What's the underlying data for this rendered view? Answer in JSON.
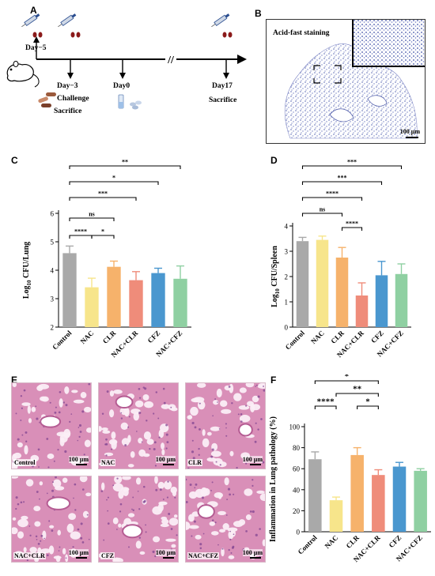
{
  "panels": {
    "A": "A",
    "B": "B",
    "C": "C",
    "D": "D",
    "E": "E",
    "F": "F"
  },
  "timeline": {
    "events": [
      {
        "label": "Day−5"
      },
      {
        "label": "Day−3",
        "sub1": "Challenge",
        "sub2": "Sacrifice"
      },
      {
        "label": "Day0"
      },
      {
        "label": "Day17",
        "sub1": "Sacrifice"
      }
    ],
    "break_mark": "//"
  },
  "panel_b": {
    "title": "Acid-fast staining",
    "scale": "100 μm"
  },
  "panel_e": {
    "tiles": [
      {
        "label": "Control",
        "scale": "100 μm"
      },
      {
        "label": "NAC",
        "scale": "100 μm"
      },
      {
        "label": "CLR",
        "scale": "100 μm"
      },
      {
        "label": "NAC+CLR",
        "scale": "100 μm"
      },
      {
        "label": "CFZ",
        "scale": "100 μm"
      },
      {
        "label": "NAC+CFZ",
        "scale": "100 μm"
      }
    ]
  },
  "colors": {
    "Control": "#a9a9a9",
    "NAC": "#f7e58b",
    "CLR": "#f6b26b",
    "NAC+CLR": "#ef8c7a",
    "CFZ": "#4a97cf",
    "NAC+CFZ": "#8fd0a2",
    "tissue": "#d98fb8",
    "tissue_dark": "#b55c93",
    "stain_blue": "#3e4fa6"
  },
  "chart_data": [
    {
      "id": "C",
      "type": "bar",
      "categories": [
        "Control",
        "NAC",
        "CLR",
        "NAC+CLR",
        "CFZ",
        "NAC+CFZ"
      ],
      "values": [
        4.6,
        3.4,
        4.12,
        3.65,
        3.9,
        3.7
      ],
      "errors": [
        0.25,
        0.32,
        0.2,
        0.3,
        0.17,
        0.45
      ],
      "ylabel_base": "Log",
      "ylabel_sub": "10",
      "ylabel_rest": " CFU/Lung",
      "ylim": [
        2,
        6
      ],
      "yticks": [
        2,
        3,
        4,
        5,
        6
      ],
      "significance": [
        {
          "from": 0,
          "to": 1,
          "label": "****"
        },
        {
          "from": 1,
          "to": 2,
          "label": "*"
        },
        {
          "from": 0,
          "to": 2,
          "label": "ns"
        },
        {
          "from": 0,
          "to": 3,
          "label": "***"
        },
        {
          "from": 0,
          "to": 4,
          "label": "*"
        },
        {
          "from": 0,
          "to": 5,
          "label": "**"
        }
      ]
    },
    {
      "id": "D",
      "type": "bar",
      "categories": [
        "Control",
        "NAC",
        "CLR",
        "NAC+CLR",
        "CFZ",
        "NAC+CFZ"
      ],
      "values": [
        3.4,
        3.45,
        2.75,
        1.25,
        2.05,
        2.1
      ],
      "errors": [
        0.15,
        0.15,
        0.4,
        0.5,
        0.55,
        0.4
      ],
      "ylabel_base": "Log",
      "ylabel_sub": "10",
      "ylabel_rest": " CFU/Spleen",
      "ylim": [
        0,
        4
      ],
      "yticks": [
        0,
        1,
        2,
        3,
        4
      ],
      "significance": [
        {
          "from": 2,
          "to": 3,
          "label": "****"
        },
        {
          "from": 0,
          "to": 2,
          "label": "ns"
        },
        {
          "from": 0,
          "to": 3,
          "label": "****"
        },
        {
          "from": 0,
          "to": 4,
          "label": "***"
        },
        {
          "from": 0,
          "to": 5,
          "label": "***"
        }
      ]
    },
    {
      "id": "F",
      "type": "bar",
      "categories": [
        "Control",
        "NAC",
        "CLR",
        "NAC+CLR",
        "CFZ",
        "NAC+CFZ"
      ],
      "values": [
        69,
        30,
        73,
        54,
        62,
        58
      ],
      "errors": [
        7,
        3,
        7,
        5,
        4,
        2
      ],
      "ylabel_base": "Inflammation in Lung pathology (%)",
      "ylabel_sub": "",
      "ylabel_rest": "",
      "ylim": [
        0,
        100
      ],
      "yticks": [
        0,
        20,
        40,
        60,
        80,
        100
      ],
      "significance": [
        {
          "from": 0,
          "to": 1,
          "label": "****"
        },
        {
          "from": 2,
          "to": 3,
          "label": "*"
        },
        {
          "from": 1,
          "to": 3,
          "label": "**"
        },
        {
          "from": 0,
          "to": 3,
          "label": "*"
        }
      ]
    }
  ]
}
